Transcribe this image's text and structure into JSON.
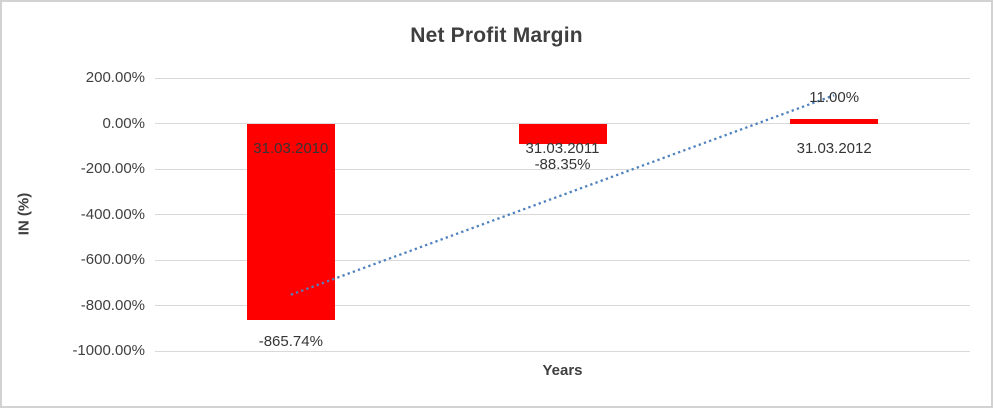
{
  "chart_data": {
    "type": "bar",
    "title": "Net Profit Margin",
    "xlabel": "Years",
    "ylabel": "IN (%)",
    "categories": [
      "31.03.2010",
      "31.03.2011",
      "31.03.2012"
    ],
    "values": [
      -865.74,
      -88.35,
      11.0
    ],
    "value_labels": [
      "-865.74%",
      "-88.35%",
      "11.00%"
    ],
    "y_ticks": [
      {
        "value": 200,
        "label": "200.00%"
      },
      {
        "value": 0,
        "label": "0.00%"
      },
      {
        "value": -200,
        "label": "-200.00%"
      },
      {
        "value": -400,
        "label": "-400.00%"
      },
      {
        "value": -600,
        "label": "-600.00%"
      },
      {
        "value": -800,
        "label": "-800.00%"
      },
      {
        "value": -1000,
        "label": "-1000.00%"
      }
    ],
    "ylim": [
      -1000,
      200
    ],
    "grid": true,
    "legend": false,
    "bar_color": "#ff0000",
    "trendline": {
      "type": "linear",
      "style": "dotted",
      "color": "#4e81bd",
      "start_value": -752.7,
      "end_value": 124.05
    },
    "colors": {
      "gridline": "#d9d9d9",
      "axis_text": "#404040",
      "title_text": "#3f3f3f",
      "frame_border": "#d2d2d2"
    }
  }
}
